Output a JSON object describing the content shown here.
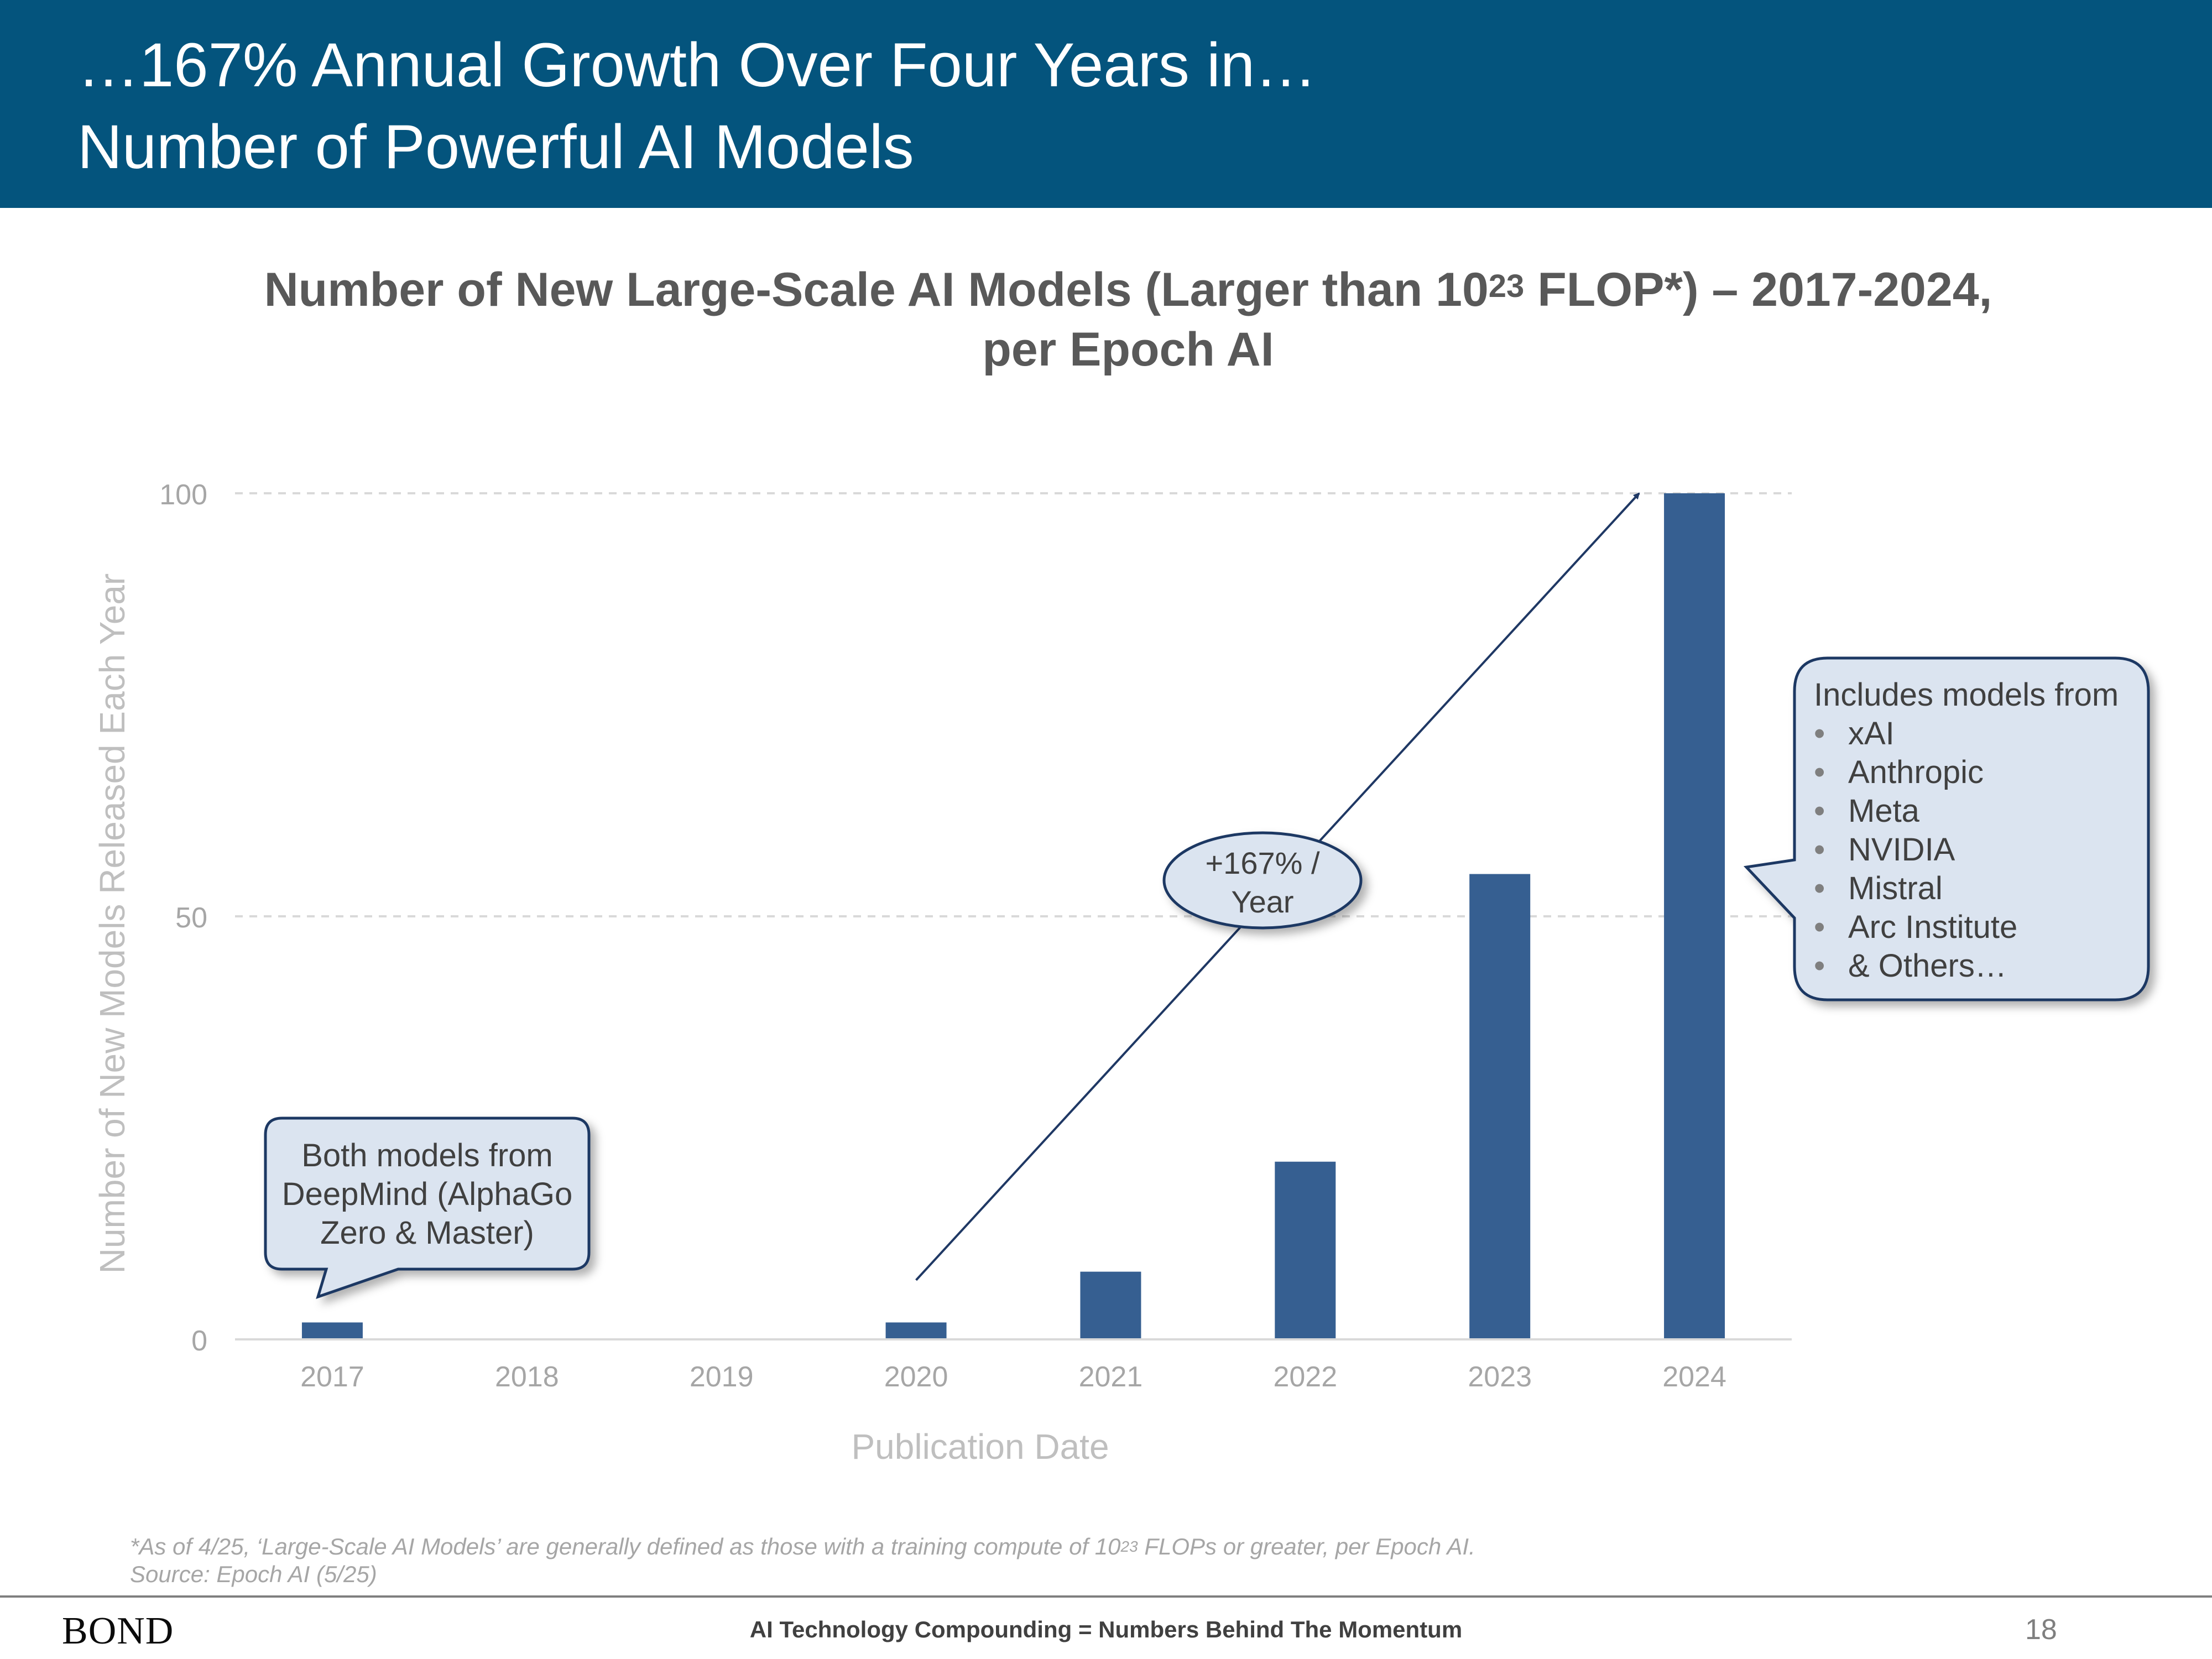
{
  "header": {
    "line1": "…167% Annual Growth Over Four Years in…",
    "line2": "Number of Powerful AI Models"
  },
  "chart_title": {
    "part1": "Number of New Large-Scale AI Models (Larger than 10",
    "sup": "23",
    "part2": " FLOP*) – 2017-2024,",
    "line2": "per Epoch AI"
  },
  "chart_data": {
    "type": "bar",
    "categories": [
      "2017",
      "2018",
      "2019",
      "2020",
      "2021",
      "2022",
      "2023",
      "2024"
    ],
    "values": [
      2,
      0,
      0,
      2,
      8,
      21,
      55,
      100
    ],
    "ylim": [
      0,
      100
    ],
    "yticks": [
      0,
      50,
      100
    ],
    "xlabel": "Publication Date",
    "ylabel": "Number of New Models Released Each Year",
    "grid": "horizontal dashed",
    "bar_color": "#365f91",
    "trend_arrow": {
      "from": [
        "2020",
        7
      ],
      "to": [
        "2024",
        100
      ],
      "label_line1": "+167% /",
      "label_line2": "Year"
    }
  },
  "callouts": {
    "left": {
      "line1": "Both models from",
      "line2": "DeepMind (AlphaGo",
      "line3": "Zero & Master)"
    },
    "right": {
      "heading": "Includes models from",
      "bullet": "•",
      "items": [
        "xAI",
        "Anthropic",
        "Meta",
        "NVIDIA",
        "Mistral",
        "Arc Institute",
        "& Others…"
      ]
    }
  },
  "footnote": {
    "part1": "*As of 4/25, ‘Large-Scale AI Models’ are generally defined as those with a training compute of 10",
    "sup": "23",
    "part2": " FLOPs or greater, per Epoch AI.",
    "source": "Source: Epoch AI (5/25)"
  },
  "footer": {
    "brand": "BOND",
    "center": "AI Technology Compounding = Numbers Behind The Momentum",
    "page": "18"
  },
  "colors": {
    "header_bg": "#04547d",
    "bar": "#365f91",
    "callout_fill": "#dbe4f0",
    "callout_border": "#1f3864",
    "axis_text": "#a6a6a6"
  }
}
